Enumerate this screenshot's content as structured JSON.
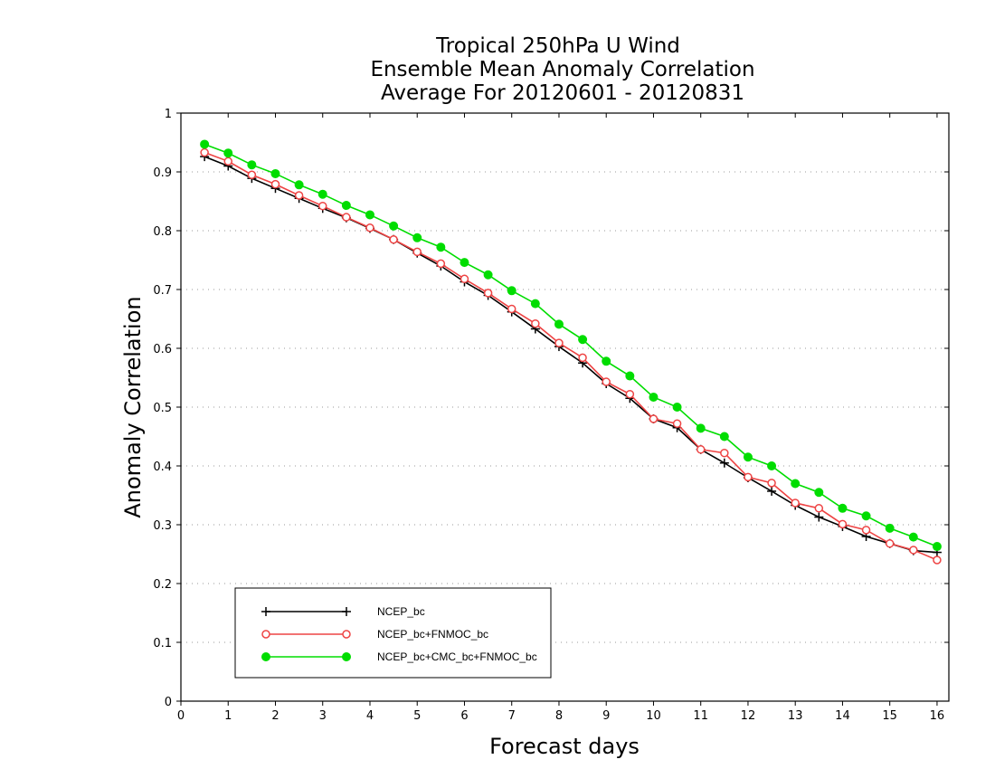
{
  "chart_data": {
    "type": "line",
    "title": [
      "Tropical 250hPa U Wind",
      "Ensemble Mean Anomaly Correlation",
      "Average For 20120601 - 20120831"
    ],
    "xlabel": "Forecast days",
    "ylabel": "Anomaly Correlation",
    "xlim": [
      0,
      16.25
    ],
    "ylim": [
      0,
      1
    ],
    "x_ticks": [
      "0",
      "1",
      "2",
      "3",
      "4",
      "5",
      "6",
      "7",
      "8",
      "9",
      "10",
      "11",
      "12",
      "13",
      "14",
      "15",
      "16"
    ],
    "y_ticks": [
      "0",
      "0.1",
      "0.2",
      "0.3",
      "0.4",
      "0.5",
      "0.6",
      "0.7",
      "0.8",
      "0.9",
      "1"
    ],
    "grid": "horizontal dotted",
    "legend_position": "bottom-left",
    "x": [
      0.5,
      1,
      1.5,
      2,
      2.5,
      3,
      3.5,
      4,
      4.5,
      5,
      5.5,
      6,
      6.5,
      7,
      7.5,
      8,
      8.5,
      9,
      9.5,
      10,
      10.5,
      11,
      11.5,
      12,
      12.5,
      13,
      13.5,
      14,
      14.5,
      15,
      15.5,
      16
    ],
    "series": [
      {
        "name": "NCEP_bc",
        "color": "#000000",
        "marker": "plus",
        "values": [
          0.926,
          0.91,
          0.889,
          0.872,
          0.855,
          0.838,
          0.822,
          0.804,
          0.785,
          0.762,
          0.74,
          0.713,
          0.69,
          0.662,
          0.633,
          0.603,
          0.575,
          0.54,
          0.515,
          0.48,
          0.465,
          0.428,
          0.405,
          0.38,
          0.357,
          0.333,
          0.313,
          0.297,
          0.28,
          0.268,
          0.256,
          0.253
        ]
      },
      {
        "name": "NCEP_bc+FNMOC_bc",
        "color": "#ee4444",
        "marker": "open-circle",
        "values": [
          0.933,
          0.918,
          0.895,
          0.879,
          0.86,
          0.842,
          0.823,
          0.805,
          0.785,
          0.764,
          0.744,
          0.718,
          0.694,
          0.667,
          0.642,
          0.609,
          0.584,
          0.543,
          0.522,
          0.48,
          0.472,
          0.428,
          0.422,
          0.381,
          0.371,
          0.337,
          0.328,
          0.301,
          0.291,
          0.268,
          0.257,
          0.24
        ]
      },
      {
        "name": "NCEP_bc+CMC_bc+FNMOC_bc",
        "color": "#00dd00",
        "marker": "filled-circle",
        "values": [
          0.947,
          0.932,
          0.912,
          0.897,
          0.878,
          0.862,
          0.843,
          0.827,
          0.808,
          0.788,
          0.772,
          0.746,
          0.725,
          0.698,
          0.676,
          0.641,
          0.615,
          0.578,
          0.553,
          0.517,
          0.5,
          0.464,
          0.45,
          0.415,
          0.4,
          0.37,
          0.355,
          0.328,
          0.315,
          0.294,
          0.279,
          0.263
        ]
      }
    ]
  }
}
